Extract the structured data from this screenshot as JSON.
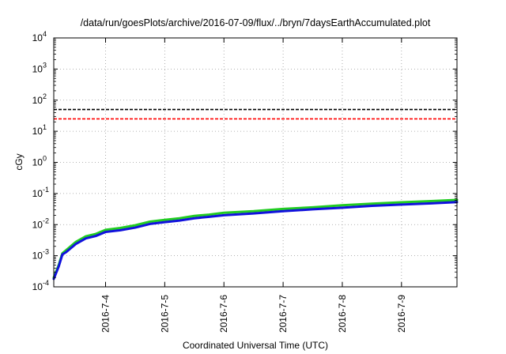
{
  "chart_data": {
    "type": "line",
    "title": "/data/run/goesPlots/archive/2016-07-09/flux/../bryn/7daysEarthAccumulated.plot",
    "xlabel": "Coordinated Universal Time (UTC)",
    "ylabel": "cGy",
    "y_scale": "log",
    "grid": true,
    "xlim": [
      "2016-07-03T03:00",
      "2016-07-09T22:30"
    ],
    "ylim": [
      0.0001,
      10000
    ],
    "x_ticks": [
      {
        "value": "2016-07-04T00:00",
        "label": "2016-7-4"
      },
      {
        "value": "2016-07-05T00:00",
        "label": "2016-7-5"
      },
      {
        "value": "2016-07-06T00:00",
        "label": "2016-7-6"
      },
      {
        "value": "2016-07-07T00:00",
        "label": "2016-7-7"
      },
      {
        "value": "2016-07-08T00:00",
        "label": "2016-7-8"
      },
      {
        "value": "2016-07-09T00:00",
        "label": "2016-7-9"
      }
    ],
    "y_ticks": [
      {
        "value": 0.0001,
        "base": "10",
        "exp": "-4"
      },
      {
        "value": 0.001,
        "base": "10",
        "exp": "-3"
      },
      {
        "value": 0.01,
        "base": "10",
        "exp": "-2"
      },
      {
        "value": 0.1,
        "base": "10",
        "exp": "-1"
      },
      {
        "value": 1,
        "base": "10",
        "exp": "0"
      },
      {
        "value": 10,
        "base": "10",
        "exp": "1"
      },
      {
        "value": 100,
        "base": "10",
        "exp": "2"
      },
      {
        "value": 1000,
        "base": "10",
        "exp": "3"
      },
      {
        "value": 10000,
        "base": "10",
        "exp": "4"
      }
    ],
    "thresholds": [
      {
        "value": 50,
        "color": "#000000",
        "dash": "dashed"
      },
      {
        "value": 25,
        "color": "#ff0000",
        "dash": "dashed"
      }
    ],
    "series": [
      {
        "color": "#22cc22",
        "x": [
          "2016-07-03T03:00",
          "2016-07-03T05:00",
          "2016-07-03T06:30",
          "2016-07-03T08:00",
          "2016-07-03T12:00",
          "2016-07-03T16:00",
          "2016-07-03T20:00",
          "2016-07-04T00:00",
          "2016-07-04T06:00",
          "2016-07-04T12:00",
          "2016-07-04T18:00",
          "2016-07-05T00:00",
          "2016-07-05T06:00",
          "2016-07-05T12:00",
          "2016-07-05T18:00",
          "2016-07-06T00:00",
          "2016-07-06T12:00",
          "2016-07-07T00:00",
          "2016-07-07T12:00",
          "2016-07-08T00:00",
          "2016-07-08T12:00",
          "2016-07-09T00:00",
          "2016-07-09T12:00",
          "2016-07-09T22:30"
        ],
        "y": [
          0.0002,
          0.0005,
          0.0012,
          0.0015,
          0.0028,
          0.0042,
          0.005,
          0.0068,
          0.0078,
          0.0095,
          0.0125,
          0.0142,
          0.016,
          0.019,
          0.021,
          0.024,
          0.027,
          0.032,
          0.036,
          0.042,
          0.047,
          0.052,
          0.057,
          0.062
        ]
      },
      {
        "color": "#1111dd",
        "x": [
          "2016-07-03T03:00",
          "2016-07-03T05:00",
          "2016-07-03T06:30",
          "2016-07-03T08:00",
          "2016-07-03T12:00",
          "2016-07-03T16:00",
          "2016-07-03T20:00",
          "2016-07-04T00:00",
          "2016-07-04T06:00",
          "2016-07-04T12:00",
          "2016-07-04T18:00",
          "2016-07-05T00:00",
          "2016-07-05T06:00",
          "2016-07-05T12:00",
          "2016-07-05T18:00",
          "2016-07-06T00:00",
          "2016-07-06T12:00",
          "2016-07-07T00:00",
          "2016-07-07T12:00",
          "2016-07-08T00:00",
          "2016-07-08T12:00",
          "2016-07-09T00:00",
          "2016-07-09T12:00",
          "2016-07-09T22:30"
        ],
        "y": [
          0.00018,
          0.00045,
          0.0011,
          0.0013,
          0.0024,
          0.0036,
          0.0043,
          0.0058,
          0.0066,
          0.008,
          0.0105,
          0.012,
          0.0135,
          0.016,
          0.0178,
          0.02,
          0.0228,
          0.027,
          0.031,
          0.035,
          0.04,
          0.044,
          0.048,
          0.053
        ]
      }
    ]
  }
}
